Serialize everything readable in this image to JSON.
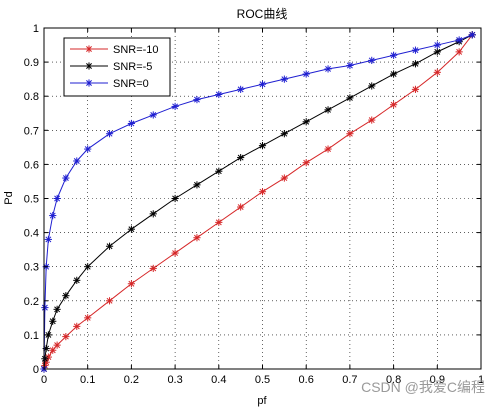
{
  "watermark": "CSDN @我爱C编程",
  "chart_data": {
    "type": "line",
    "title": "ROC曲线",
    "xlabel": "pf",
    "ylabel": "Pd",
    "xlim": [
      0,
      1
    ],
    "ylim": [
      0,
      1
    ],
    "xticks": [
      "0",
      "0.1",
      "0.2",
      "0.3",
      "0.4",
      "0.5",
      "0.6",
      "0.7",
      "0.8",
      "0.9",
      "1"
    ],
    "yticks": [
      "0",
      "0.1",
      "0.2",
      "0.3",
      "0.4",
      "0.5",
      "0.6",
      "0.7",
      "0.8",
      "0.9",
      "1"
    ],
    "grid": true,
    "legend_position": "top-left",
    "series": [
      {
        "name": "SNR=-10",
        "color": "#d62728",
        "marker": "asterisk",
        "x": [
          0,
          0.002,
          0.005,
          0.01,
          0.02,
          0.03,
          0.05,
          0.075,
          0.1,
          0.15,
          0.2,
          0.25,
          0.3,
          0.35,
          0.4,
          0.45,
          0.5,
          0.55,
          0.6,
          0.65,
          0.7,
          0.75,
          0.8,
          0.85,
          0.9,
          0.95,
          0.98
        ],
        "y": [
          0,
          0.01,
          0.02,
          0.035,
          0.055,
          0.07,
          0.095,
          0.125,
          0.15,
          0.2,
          0.25,
          0.295,
          0.34,
          0.385,
          0.43,
          0.475,
          0.52,
          0.56,
          0.605,
          0.645,
          0.69,
          0.73,
          0.775,
          0.82,
          0.87,
          0.93,
          0.98
        ]
      },
      {
        "name": "SNR=-5",
        "color": "#000000",
        "marker": "asterisk",
        "x": [
          0,
          0.002,
          0.005,
          0.01,
          0.02,
          0.03,
          0.05,
          0.075,
          0.1,
          0.15,
          0.2,
          0.25,
          0.3,
          0.35,
          0.4,
          0.45,
          0.5,
          0.55,
          0.6,
          0.65,
          0.7,
          0.75,
          0.8,
          0.85,
          0.9,
          0.95,
          0.98
        ],
        "y": [
          0,
          0.03,
          0.06,
          0.1,
          0.14,
          0.175,
          0.215,
          0.26,
          0.3,
          0.36,
          0.41,
          0.455,
          0.5,
          0.54,
          0.58,
          0.62,
          0.655,
          0.69,
          0.725,
          0.76,
          0.795,
          0.83,
          0.865,
          0.895,
          0.93,
          0.96,
          0.98
        ]
      },
      {
        "name": "SNR=0",
        "color": "#1f1fd1",
        "marker": "asterisk",
        "x": [
          0,
          0.002,
          0.005,
          0.01,
          0.02,
          0.03,
          0.05,
          0.075,
          0.1,
          0.15,
          0.2,
          0.25,
          0.3,
          0.35,
          0.4,
          0.45,
          0.5,
          0.55,
          0.6,
          0.65,
          0.7,
          0.75,
          0.8,
          0.85,
          0.9,
          0.95,
          0.98
        ],
        "y": [
          0,
          0.18,
          0.3,
          0.38,
          0.45,
          0.5,
          0.56,
          0.61,
          0.645,
          0.69,
          0.72,
          0.745,
          0.77,
          0.79,
          0.805,
          0.82,
          0.835,
          0.85,
          0.865,
          0.88,
          0.89,
          0.905,
          0.92,
          0.935,
          0.95,
          0.965,
          0.98
        ]
      }
    ]
  }
}
